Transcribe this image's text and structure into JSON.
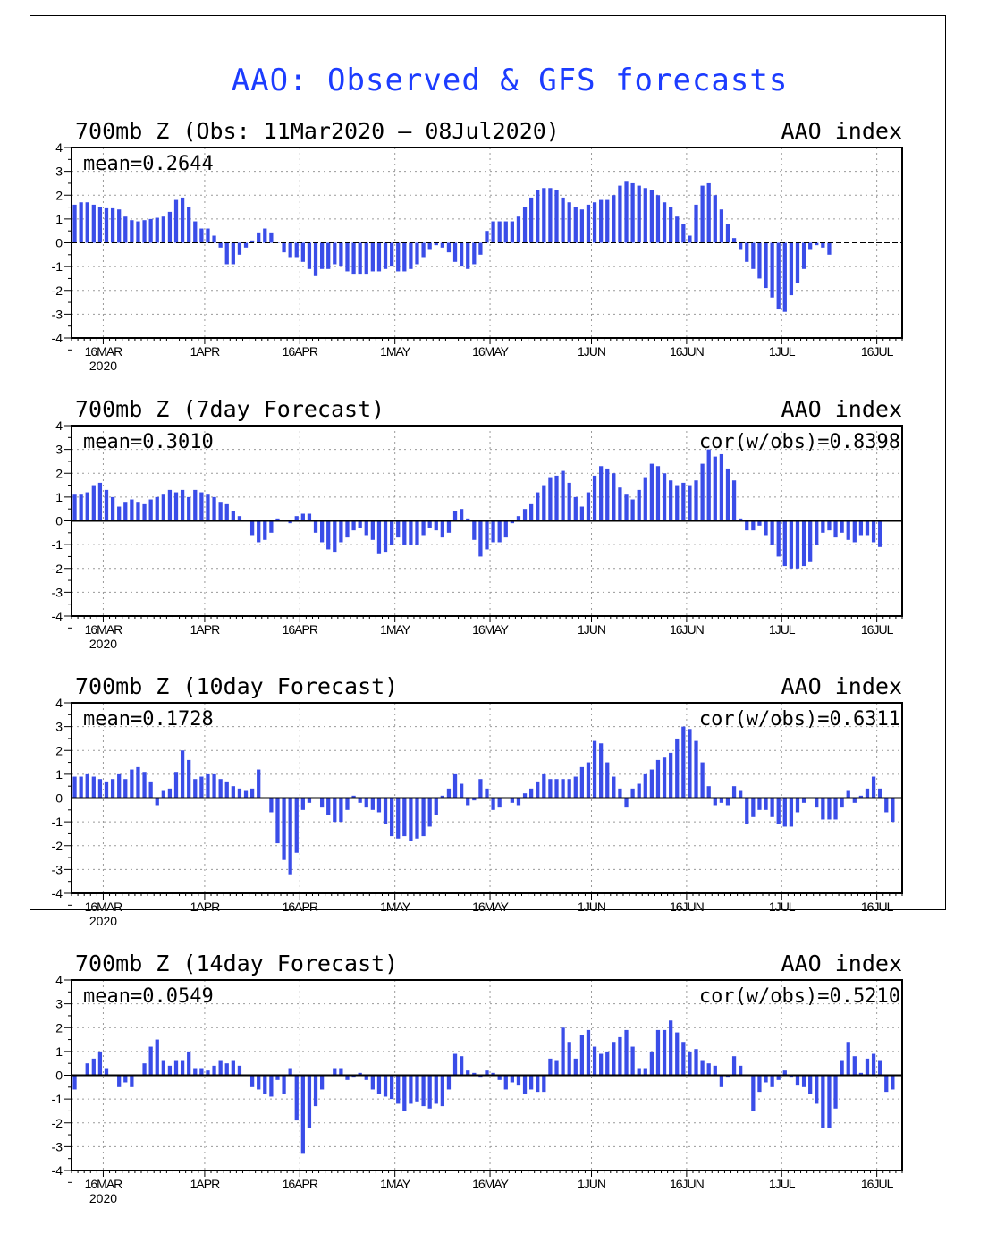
{
  "title": "AAO: Observed & GFS forecasts",
  "colors": {
    "bar": "#3a4de8",
    "axis": "#000000",
    "grid": "#9a9a9a",
    "title": "#1c3cff"
  },
  "x_axis": {
    "ticks": [
      {
        "day": 5,
        "label": "16MAR"
      },
      {
        "day": 21,
        "label": "1APR"
      },
      {
        "day": 36,
        "label": "16APR"
      },
      {
        "day": 51,
        "label": "1MAY"
      },
      {
        "day": 66,
        "label": "16MAY"
      },
      {
        "day": 82,
        "label": "1JUN"
      },
      {
        "day": 97,
        "label": "16JUN"
      },
      {
        "day": 112,
        "label": "1JUL"
      },
      {
        "day": 127,
        "label": "16JUL"
      }
    ],
    "year_label": "2020"
  },
  "chart_data": [
    {
      "type": "bar",
      "title": "700mb Z (Obs: 11Mar2020 – 08Jul2020)",
      "right_label": "AAO index",
      "mean_label": "mean=0.2644",
      "cor_label": "",
      "xlabel": "",
      "ylabel": "",
      "ylim": [
        -4,
        4
      ],
      "yticks": [
        4,
        3,
        2,
        1,
        0,
        -1,
        -2,
        -3,
        -4
      ],
      "x_start": "11MAR2020",
      "values": [
        1.6,
        1.7,
        1.7,
        1.6,
        1.5,
        1.45,
        1.45,
        1.4,
        1.1,
        0.95,
        0.9,
        0.95,
        1.0,
        1.05,
        1.1,
        1.3,
        1.8,
        1.9,
        1.5,
        0.9,
        0.6,
        0.6,
        0.3,
        -0.2,
        -0.9,
        -0.9,
        -0.5,
        -0.2,
        0.1,
        0.4,
        0.6,
        0.4,
        0.0,
        -0.4,
        -0.6,
        -0.6,
        -0.8,
        -1.1,
        -1.4,
        -1.1,
        -1.1,
        -0.9,
        -1.0,
        -1.2,
        -1.3,
        -1.3,
        -1.3,
        -1.2,
        -1.2,
        -1.1,
        -1.0,
        -1.2,
        -1.2,
        -1.1,
        -0.9,
        -0.6,
        -0.3,
        -0.1,
        -0.2,
        -0.4,
        -0.8,
        -1.0,
        -1.1,
        -0.9,
        -0.5,
        0.5,
        0.9,
        0.9,
        0.9,
        0.9,
        1.1,
        1.5,
        1.9,
        2.2,
        2.3,
        2.3,
        2.2,
        1.9,
        1.7,
        1.5,
        1.4,
        1.6,
        1.7,
        1.8,
        1.8,
        2.0,
        2.4,
        2.6,
        2.5,
        2.4,
        2.3,
        2.2,
        2.0,
        1.7,
        1.5,
        1.1,
        0.8,
        0.3,
        1.6,
        2.4,
        2.5,
        2.0,
        1.4,
        0.8,
        0.2,
        -0.3,
        -0.8,
        -1.1,
        -1.5,
        -1.9,
        -2.3,
        -2.8,
        -2.9,
        -2.2,
        -1.7,
        -1.1,
        -0.3,
        -0.1,
        -0.2,
        -0.5
      ]
    },
    {
      "type": "bar",
      "title": "700mb Z (7day Forecast)",
      "right_label": "AAO index",
      "mean_label": "mean=0.3010",
      "cor_label": "cor(w/obs)=0.8398",
      "xlabel": "",
      "ylabel": "",
      "ylim": [
        -4,
        4
      ],
      "yticks": [
        4,
        3,
        2,
        1,
        0,
        -1,
        -2,
        -3,
        -4
      ],
      "x_start": "11MAR2020",
      "values": [
        1.1,
        1.1,
        1.2,
        1.5,
        1.6,
        1.3,
        1.0,
        0.6,
        0.8,
        0.9,
        0.8,
        0.7,
        0.9,
        1.0,
        1.1,
        1.3,
        1.2,
        1.3,
        1.0,
        1.3,
        1.2,
        1.1,
        1.0,
        0.8,
        0.7,
        0.4,
        0.2,
        0.0,
        -0.6,
        -0.9,
        -0.8,
        -0.5,
        0.1,
        0.0,
        -0.1,
        0.2,
        0.3,
        0.3,
        -0.5,
        -0.9,
        -1.2,
        -1.3,
        -0.9,
        -0.7,
        -0.4,
        -0.3,
        -0.6,
        -0.8,
        -1.4,
        -1.3,
        -1.0,
        -0.7,
        -1.0,
        -1.0,
        -1.0,
        -0.6,
        -0.3,
        -0.4,
        -0.7,
        -0.5,
        0.4,
        0.5,
        0.1,
        -0.8,
        -1.5,
        -1.2,
        -0.9,
        -0.9,
        -0.7,
        -0.1,
        0.2,
        0.5,
        0.7,
        1.2,
        1.5,
        1.8,
        1.9,
        2.1,
        1.6,
        1.0,
        0.6,
        1.2,
        1.9,
        2.3,
        2.2,
        2.0,
        1.4,
        1.1,
        0.9,
        1.3,
        1.8,
        2.4,
        2.3,
        2.0,
        1.7,
        1.5,
        1.6,
        1.5,
        1.7,
        2.4,
        3.0,
        2.7,
        2.8,
        2.2,
        1.7,
        0.1,
        -0.4,
        -0.4,
        -0.2,
        -0.6,
        -1.0,
        -1.5,
        -1.9,
        -2.0,
        -2.0,
        -1.9,
        -1.7,
        -1.0,
        -0.5,
        -0.4,
        -0.7,
        -0.5,
        -0.8,
        -0.9,
        -0.6,
        -0.6,
        -0.9,
        -1.1
      ]
    },
    {
      "type": "bar",
      "title": "700mb Z (10day Forecast)",
      "right_label": "AAO index",
      "mean_label": "mean=0.1728",
      "cor_label": "cor(w/obs)=0.6311",
      "xlabel": "",
      "ylabel": "",
      "ylim": [
        -4,
        4
      ],
      "yticks": [
        4,
        3,
        2,
        1,
        0,
        -1,
        -2,
        -3,
        -4
      ],
      "x_start": "11MAR2020",
      "values": [
        0.9,
        0.9,
        1.0,
        0.9,
        0.8,
        0.7,
        0.8,
        1.0,
        0.8,
        1.2,
        1.3,
        1.1,
        0.7,
        -0.3,
        0.3,
        0.4,
        1.1,
        2.0,
        1.6,
        0.8,
        0.9,
        1.0,
        1.0,
        0.8,
        0.7,
        0.5,
        0.4,
        0.3,
        0.4,
        1.2,
        0.0,
        -0.6,
        -1.9,
        -2.6,
        -3.2,
        -2.3,
        -0.5,
        -0.2,
        0.0,
        -0.4,
        -0.7,
        -1.0,
        -1.0,
        -0.5,
        0.1,
        -0.2,
        -0.4,
        -0.5,
        -0.6,
        -1.1,
        -1.6,
        -1.7,
        -1.6,
        -1.8,
        -1.7,
        -1.6,
        -1.2,
        -0.7,
        0.1,
        0.4,
        1.0,
        0.6,
        -0.3,
        -0.1,
        0.8,
        0.4,
        -0.5,
        -0.4,
        0.0,
        -0.2,
        -0.3,
        0.2,
        0.4,
        0.7,
        1.0,
        0.8,
        0.8,
        0.8,
        0.8,
        0.9,
        1.3,
        1.5,
        2.4,
        2.3,
        1.5,
        0.9,
        0.4,
        -0.4,
        0.4,
        0.6,
        1.0,
        1.2,
        1.6,
        1.7,
        1.9,
        2.5,
        3.0,
        2.9,
        2.4,
        1.5,
        0.5,
        -0.3,
        -0.2,
        -0.3,
        0.5,
        0.3,
        -1.1,
        -0.8,
        -0.5,
        -0.5,
        -0.8,
        -1.1,
        -1.2,
        -1.2,
        -0.6,
        -0.2,
        0.0,
        -0.4,
        -0.9,
        -0.9,
        -0.9,
        -0.4,
        0.3,
        -0.2,
        0.1,
        0.4,
        0.9,
        0.4,
        -0.6,
        -1.0
      ]
    },
    {
      "type": "bar",
      "title": "700mb Z (14day Forecast)",
      "right_label": "AAO index",
      "mean_label": "mean=0.0549",
      "cor_label": "cor(w/obs)=0.5210",
      "xlabel": "",
      "ylabel": "",
      "ylim": [
        -4,
        4
      ],
      "yticks": [
        4,
        3,
        2,
        1,
        0,
        -1,
        -2,
        -3,
        -4
      ],
      "x_start": "11MAR2020",
      "values": [
        -0.6,
        0.0,
        0.5,
        0.7,
        1.0,
        0.3,
        0.0,
        -0.5,
        -0.3,
        -0.5,
        0.0,
        0.5,
        1.2,
        1.5,
        0.6,
        0.4,
        0.6,
        0.6,
        1.0,
        0.3,
        0.3,
        0.2,
        0.4,
        0.6,
        0.5,
        0.6,
        0.4,
        0.0,
        -0.5,
        -0.6,
        -0.8,
        -0.9,
        -0.2,
        -0.8,
        0.3,
        -1.9,
        -3.3,
        -2.2,
        -1.3,
        -0.6,
        0.0,
        0.3,
        0.3,
        -0.2,
        -0.1,
        0.1,
        -0.2,
        -0.6,
        -0.8,
        -0.9,
        -1.0,
        -1.2,
        -1.5,
        -1.2,
        -1.1,
        -1.3,
        -1.4,
        -1.2,
        -1.3,
        -0.6,
        0.9,
        0.8,
        0.2,
        0.1,
        -0.1,
        0.2,
        0.1,
        -0.2,
        -0.6,
        -0.3,
        -0.4,
        -0.8,
        -0.6,
        -0.7,
        -0.7,
        0.7,
        0.6,
        2.0,
        1.4,
        0.7,
        1.7,
        1.9,
        1.2,
        0.9,
        1.0,
        1.4,
        1.6,
        1.9,
        1.2,
        0.3,
        0.3,
        1.0,
        1.9,
        1.9,
        2.3,
        1.8,
        1.4,
        1.0,
        1.1,
        0.6,
        0.5,
        0.4,
        -0.5,
        -0.1,
        0.8,
        0.4,
        0.0,
        -1.5,
        -0.7,
        -0.3,
        -0.5,
        -0.2,
        0.2,
        -0.1,
        -0.4,
        -0.5,
        -0.8,
        -1.2,
        -2.2,
        -2.2,
        -1.4,
        0.6,
        1.4,
        0.8,
        0.1,
        0.7,
        0.9,
        0.6,
        -0.7,
        -0.6
      ]
    }
  ]
}
